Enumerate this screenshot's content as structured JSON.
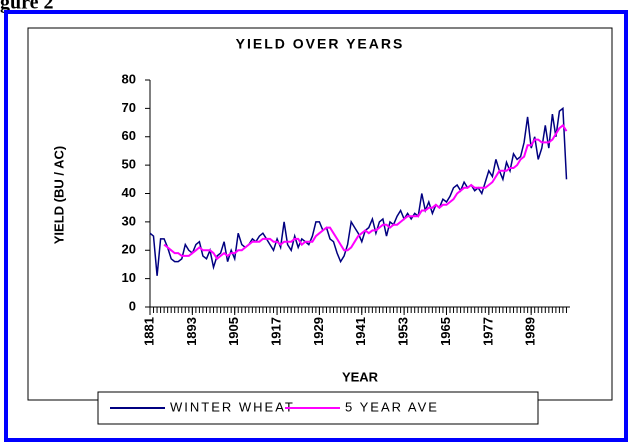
{
  "figure_label": "gure 2",
  "chart_data": {
    "type": "line",
    "title": "YIELD OVER YEARS",
    "xlabel": "YEAR",
    "ylabel": "YIELD (BU / AC)",
    "x": [
      1881,
      1882,
      1883,
      1884,
      1885,
      1886,
      1887,
      1888,
      1889,
      1890,
      1891,
      1892,
      1893,
      1894,
      1895,
      1896,
      1897,
      1898,
      1899,
      1900,
      1901,
      1902,
      1903,
      1904,
      1905,
      1906,
      1907,
      1908,
      1909,
      1910,
      1911,
      1912,
      1913,
      1914,
      1915,
      1916,
      1917,
      1918,
      1919,
      1920,
      1921,
      1922,
      1923,
      1924,
      1925,
      1926,
      1927,
      1928,
      1929,
      1930,
      1931,
      1932,
      1933,
      1934,
      1935,
      1936,
      1937,
      1938,
      1939,
      1940,
      1941,
      1942,
      1943,
      1944,
      1945,
      1946,
      1947,
      1948,
      1949,
      1950,
      1951,
      1952,
      1953,
      1954,
      1955,
      1956,
      1957,
      1958,
      1959,
      1960,
      1961,
      1962,
      1963,
      1964,
      1965,
      1966,
      1967,
      1968,
      1969,
      1970,
      1971,
      1972,
      1973,
      1974,
      1975,
      1976,
      1977,
      1978,
      1979,
      1980,
      1981,
      1982,
      1983,
      1984,
      1985,
      1986,
      1987,
      1988,
      1989,
      1990,
      1991,
      1992,
      1993,
      1994,
      1995,
      1996,
      1997,
      1998,
      1999
    ],
    "series": [
      {
        "name": "WINTER WHEAT",
        "color": "#000080",
        "values": [
          26,
          25,
          11,
          24,
          24,
          21,
          17,
          16,
          16,
          17,
          22,
          20,
          19,
          22,
          23,
          18,
          17,
          20,
          14,
          18,
          19,
          23,
          16,
          20,
          17,
          26,
          22,
          21,
          22,
          24,
          23,
          25,
          26,
          24,
          22,
          20,
          24,
          21,
          30,
          22,
          20,
          25,
          21,
          24,
          23,
          22,
          25,
          30,
          30,
          27,
          28,
          24,
          23,
          19,
          16,
          18,
          22,
          30,
          28,
          26,
          23,
          27,
          28,
          31,
          26,
          30,
          31,
          25,
          30,
          29,
          32,
          34,
          31,
          33,
          31,
          33,
          32,
          40,
          34,
          37,
          33,
          36,
          35,
          38,
          37,
          39,
          42,
          43,
          41,
          44,
          42,
          43,
          41,
          42,
          40,
          44,
          48,
          46,
          52,
          48,
          45,
          51,
          48,
          54,
          52,
          53,
          58,
          67,
          56,
          60,
          52,
          56,
          64,
          56,
          68,
          60,
          69,
          70,
          45
        ]
      },
      {
        "name": "5 YEAR AVE",
        "color": "#ff00ff",
        "values": [
          null,
          null,
          null,
          null,
          22,
          21,
          20,
          19,
          19,
          18,
          18,
          18,
          19,
          20,
          21,
          20,
          20,
          20,
          19,
          17,
          18,
          19,
          18,
          19,
          19,
          20,
          20,
          21,
          22,
          23,
          23,
          23,
          24,
          24,
          24,
          23,
          23,
          22,
          23,
          23,
          23,
          24,
          24,
          22,
          23,
          23,
          23,
          25,
          26,
          27,
          28,
          28,
          26,
          24,
          22,
          20,
          20,
          21,
          23,
          25,
          26,
          27,
          26,
          27,
          27,
          28,
          29,
          29,
          28,
          29,
          29,
          30,
          31,
          32,
          32,
          32,
          32,
          34,
          34,
          35,
          35,
          36,
          35,
          36,
          36,
          37,
          38,
          40,
          41,
          42,
          42,
          43,
          42,
          42,
          42,
          42,
          43,
          44,
          46,
          48,
          48,
          48,
          49,
          49,
          50,
          52,
          53,
          57,
          57,
          59,
          59,
          58,
          58,
          58,
          59,
          61,
          63,
          64,
          62
        ]
      }
    ],
    "xlim": [
      1881,
      2000
    ],
    "xticks": [
      1881,
      1893,
      1905,
      1917,
      1929,
      1941,
      1953,
      1965,
      1977,
      1989
    ],
    "ylim": [
      0,
      80
    ],
    "yticks": [
      0,
      10,
      20,
      30,
      40,
      50,
      60,
      70,
      80
    ],
    "grid": false,
    "legend": "bottom"
  }
}
